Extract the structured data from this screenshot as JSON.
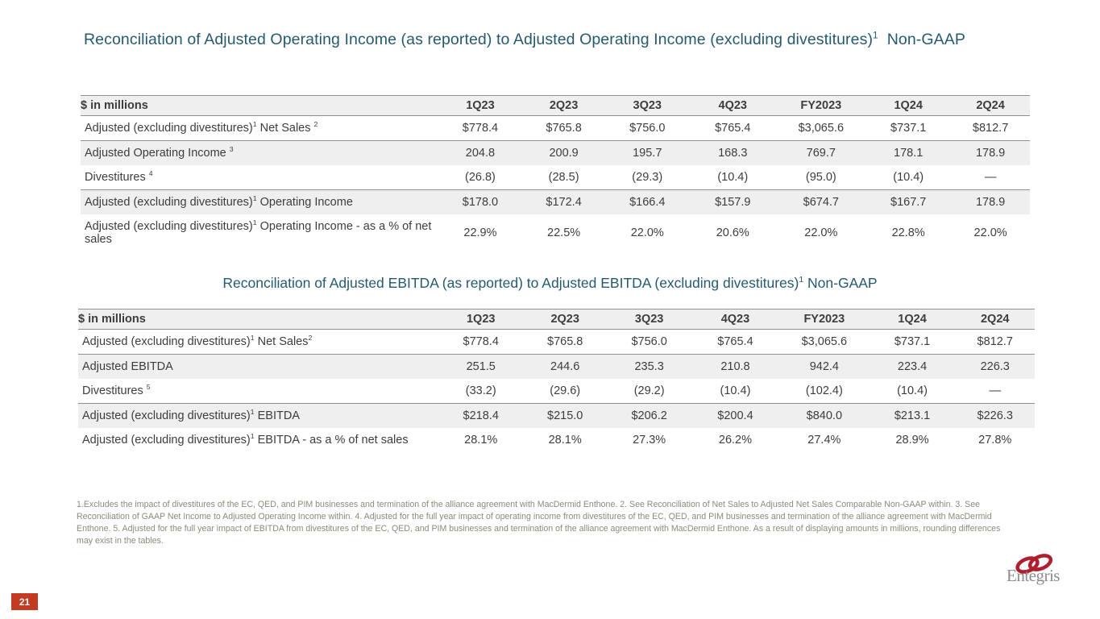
{
  "slide": {
    "page_number": "21",
    "colors": {
      "title_teal": "#265a6e",
      "badge_red": "#c23b22",
      "logo_red": "#b01f2e",
      "logo_gray": "#8c8c8c",
      "band_gray": "#efefef",
      "rule_gray": "#8f8f8f",
      "footnote_gray": "#8a8a7d"
    }
  },
  "title_operating_income": "Reconciliation of Adjusted Operating Income (as reported) to Adjusted Operating Income (excluding divestitures)^1  Non-GAAP",
  "title_ebitda": "Reconciliation of Adjusted EBITDA (as reported) to Adjusted EBITDA (excluding divestitures)^1 Non-GAAP",
  "tables": [
    {
      "corner_label": "$ in millions",
      "columns": [
        "1Q23",
        "2Q23",
        "3Q23",
        "4Q23",
        "FY2023",
        "1Q24",
        "2Q24"
      ],
      "rows": [
        {
          "label": "Adjusted (excluding divestitures)^1 Net Sales ^2",
          "values": [
            "$778.4",
            "$765.8",
            "$756.0",
            "$765.4",
            "$3,065.6",
            "$737.1",
            "$812.7"
          ],
          "shaded": false,
          "rule_below": true
        },
        {
          "label": "Adjusted Operating Income ^3",
          "values": [
            "204.8",
            "200.9",
            "195.7",
            "168.3",
            "769.7",
            "178.1",
            "178.9"
          ],
          "shaded": true,
          "rule_below": false
        },
        {
          "label": "Divestitures ^4",
          "values": [
            "(26.8)",
            "(28.5)",
            "(29.3)",
            "(10.4)",
            "(95.0)",
            "(10.4)",
            "—"
          ],
          "shaded": false,
          "rule_below": true
        },
        {
          "label": "Adjusted (excluding divestitures)^1 Operating Income",
          "values": [
            "$178.0",
            "$172.4",
            "$166.4",
            "$157.9",
            "$674.7",
            "$167.7",
            "178.9"
          ],
          "shaded": true,
          "rule_below": false
        },
        {
          "label": "Adjusted (excluding divestitures)^1 Operating Income - as a % of net sales",
          "values": [
            "22.9%",
            "22.5%",
            "22.0%",
            "20.6%",
            "22.0%",
            "22.8%",
            "22.0%"
          ],
          "shaded": false,
          "rule_below": false
        }
      ]
    },
    {
      "corner_label": "$ in millions",
      "columns": [
        "1Q23",
        "2Q23",
        "3Q23",
        "4Q23",
        "FY2023",
        "1Q24",
        "2Q24"
      ],
      "rows": [
        {
          "label": "Adjusted (excluding divestitures)^1 Net Sales^2",
          "values": [
            "$778.4",
            "$765.8",
            "$756.0",
            "$765.4",
            "$3,065.6",
            "$737.1",
            "$812.7"
          ],
          "shaded": false,
          "rule_below": true
        },
        {
          "label": "Adjusted EBITDA",
          "values": [
            "251.5",
            "244.6",
            "235.3",
            "210.8",
            "942.4",
            "223.4",
            "226.3"
          ],
          "shaded": true,
          "rule_below": false
        },
        {
          "label": "Divestitures ^5",
          "values": [
            "(33.2)",
            "(29.6)",
            "(29.2)",
            "(10.4)",
            "(102.4)",
            "(10.4)",
            "—"
          ],
          "shaded": false,
          "rule_below": true
        },
        {
          "label": "Adjusted (excluding divestitures)^1 EBITDA",
          "values": [
            "$218.4",
            "$215.0",
            "$206.2",
            "$200.4",
            "$840.0",
            "$213.1",
            "$226.3"
          ],
          "shaded": true,
          "rule_below": false
        },
        {
          "label": "Adjusted (excluding divestitures)^1 EBITDA - as a % of net sales",
          "values": [
            "28.1%",
            "28.1%",
            "27.3%",
            "26.2%",
            "27.4%",
            "28.9%",
            "27.8%"
          ],
          "shaded": false,
          "rule_below": false
        }
      ]
    }
  ],
  "footnotes": "1.Excludes the impact of divestitures of the EC, QED, and PIM businesses and termination of the alliance agreement with MacDermid Enthone.  2. See Reconciliation of Net Sales to Adjusted Net Sales Comparable Non-GAAP within.  3. See Reconciliation of GAAP Net Income to Adjusted Operating Income within.  4. Adjusted for the full year impact of operating income from divestitures of the EC, QED, and PIM businesses and termination of the alliance agreement with MacDermid Enthone.  5. Adjusted for the full year impact of EBITDA from divestitures of the EC, QED, and PIM businesses and termination of the alliance agreement with MacDermid Enthone.  As a result of displaying amounts in millions, rounding differences may exist in the tables.",
  "logo": {
    "brand": "Entegris"
  }
}
